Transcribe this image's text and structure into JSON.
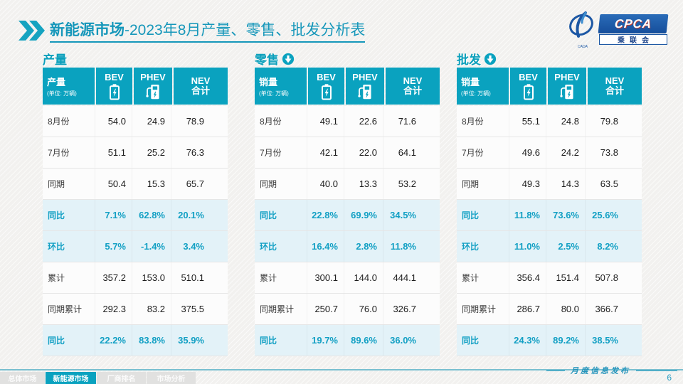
{
  "header": {
    "title_bold": "新能源市场",
    "title_rest": "-2023年8月产量、零售、批发分析表",
    "logo": {
      "cpca": "CPCA",
      "sub": "乘联会",
      "swirl_caption": "CADA"
    }
  },
  "table_common": {
    "unit": "(单位: 万辆)",
    "bev": "BEV",
    "phev": "PHEV",
    "nev_line1": "NEV",
    "nev_line2": "合计"
  },
  "tables": [
    {
      "section": "产量",
      "label_header": "产量",
      "rows": [
        {
          "label": "8月份",
          "bev": "54.0",
          "phev": "24.9",
          "nev": "78.9",
          "hl": false
        },
        {
          "label": "7月份",
          "bev": "51.1",
          "phev": "25.2",
          "nev": "76.3",
          "hl": false
        },
        {
          "label": "同期",
          "bev": "50.4",
          "phev": "15.3",
          "nev": "65.7",
          "hl": false
        },
        {
          "label": "同比",
          "bev": "7.1%",
          "phev": "62.8%",
          "nev": "20.1%",
          "hl": true
        },
        {
          "label": "环比",
          "bev": "5.7%",
          "phev": "-1.4%",
          "nev": "3.4%",
          "hl": true
        },
        {
          "label": "累计",
          "bev": "357.2",
          "phev": "153.0",
          "nev": "510.1",
          "hl": false
        },
        {
          "label": "同期累计",
          "bev": "292.3",
          "phev": "83.2",
          "nev": "375.5",
          "hl": false
        },
        {
          "label": "同比",
          "bev": "22.2%",
          "phev": "83.8%",
          "nev": "35.9%",
          "hl": true
        }
      ]
    },
    {
      "section": "零售",
      "label_header": "销量",
      "rows": [
        {
          "label": "8月份",
          "bev": "49.1",
          "phev": "22.6",
          "nev": "71.6",
          "hl": false
        },
        {
          "label": "7月份",
          "bev": "42.1",
          "phev": "22.0",
          "nev": "64.1",
          "hl": false
        },
        {
          "label": "同期",
          "bev": "40.0",
          "phev": "13.3",
          "nev": "53.2",
          "hl": false
        },
        {
          "label": "同比",
          "bev": "22.8%",
          "phev": "69.9%",
          "nev": "34.5%",
          "hl": true
        },
        {
          "label": "环比",
          "bev": "16.4%",
          "phev": "2.8%",
          "nev": "11.8%",
          "hl": true
        },
        {
          "label": "累计",
          "bev": "300.1",
          "phev": "144.0",
          "nev": "444.1",
          "hl": false
        },
        {
          "label": "同期累计",
          "bev": "250.7",
          "phev": "76.0",
          "nev": "326.7",
          "hl": false
        },
        {
          "label": "同比",
          "bev": "19.7%",
          "phev": "89.6%",
          "nev": "36.0%",
          "hl": true
        }
      ]
    },
    {
      "section": "批发",
      "label_header": "销量",
      "rows": [
        {
          "label": "8月份",
          "bev": "55.1",
          "phev": "24.8",
          "nev": "79.8",
          "hl": false
        },
        {
          "label": "7月份",
          "bev": "49.6",
          "phev": "24.2",
          "nev": "73.8",
          "hl": false
        },
        {
          "label": "同期",
          "bev": "49.3",
          "phev": "14.3",
          "nev": "63.5",
          "hl": false
        },
        {
          "label": "同比",
          "bev": "11.8%",
          "phev": "73.6%",
          "nev": "25.6%",
          "hl": true
        },
        {
          "label": "环比",
          "bev": "11.0%",
          "phev": "2.5%",
          "nev": "8.2%",
          "hl": true
        },
        {
          "label": "累计",
          "bev": "356.4",
          "phev": "151.4",
          "nev": "507.8",
          "hl": false
        },
        {
          "label": "同期累计",
          "bev": "286.7",
          "phev": "80.0",
          "nev": "366.7",
          "hl": false
        },
        {
          "label": "同比",
          "bev": "24.3%",
          "phev": "89.2%",
          "nev": "38.5%",
          "hl": true
        }
      ]
    }
  ],
  "watermark": "CPCA",
  "footer": {
    "tabs": [
      {
        "label": "总体市场",
        "active": false
      },
      {
        "label": "新能源市场",
        "active": true
      },
      {
        "label": "厂商排名",
        "active": false
      },
      {
        "label": "市场分析",
        "active": false
      }
    ],
    "publication": "月度信息发布",
    "page": "6"
  }
}
